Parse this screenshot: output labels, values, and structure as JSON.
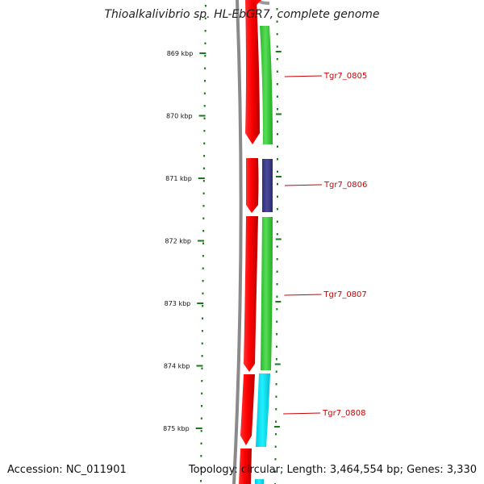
{
  "title": "Thioalkalivibrio sp. HL-EbGR7, complete genome",
  "accession_text": "Accession: NC_011901",
  "summary_text": "Topology: circular; Length: 3,464,554 bp; Genes: 3,330",
  "ticks": [
    {
      "label": "869 kbp",
      "pos_kbp": 869
    },
    {
      "label": "870 kbp",
      "pos_kbp": 870
    },
    {
      "label": "871 kbp",
      "pos_kbp": 871
    },
    {
      "label": "872 kbp",
      "pos_kbp": 872
    },
    {
      "label": "873 kbp",
      "pos_kbp": 873
    },
    {
      "label": "874 kbp",
      "pos_kbp": 874
    },
    {
      "label": "875 kbp",
      "pos_kbp": 875
    }
  ],
  "genes": [
    {
      "name": "Tgr7_0805",
      "track_color": "#33cc33"
    },
    {
      "name": "Tgr7_0806",
      "track_color": "#3c3c8c"
    },
    {
      "name": "Tgr7_0807",
      "track_color": "#33cc33"
    },
    {
      "name": "Tgr7_0808",
      "track_color": "#00e5ee"
    }
  ],
  "colors": {
    "backbone": "#888888",
    "cds": "#ff0000",
    "tick": "#1a7a1a",
    "label": "#cc0000"
  }
}
